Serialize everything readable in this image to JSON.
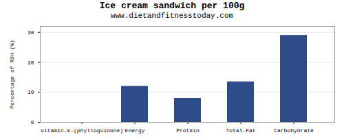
{
  "chart_data": {
    "type": "bar",
    "title": "Ice cream sandwich per 100g",
    "subtitle": "www.dietandfitnesstoday.com",
    "categories": [
      "vitamin-k-(phylloquinone)",
      "Energy",
      "Protein",
      "Total-Fat",
      "Carbohydrate"
    ],
    "values": [
      0,
      12,
      8,
      13.5,
      29
    ],
    "color": "#2e4a87",
    "ylabel": "Percentage of RDH (%)",
    "ylim": [
      0,
      32
    ],
    "yticks": [
      0,
      10,
      20,
      30
    ],
    "grid": true
  }
}
